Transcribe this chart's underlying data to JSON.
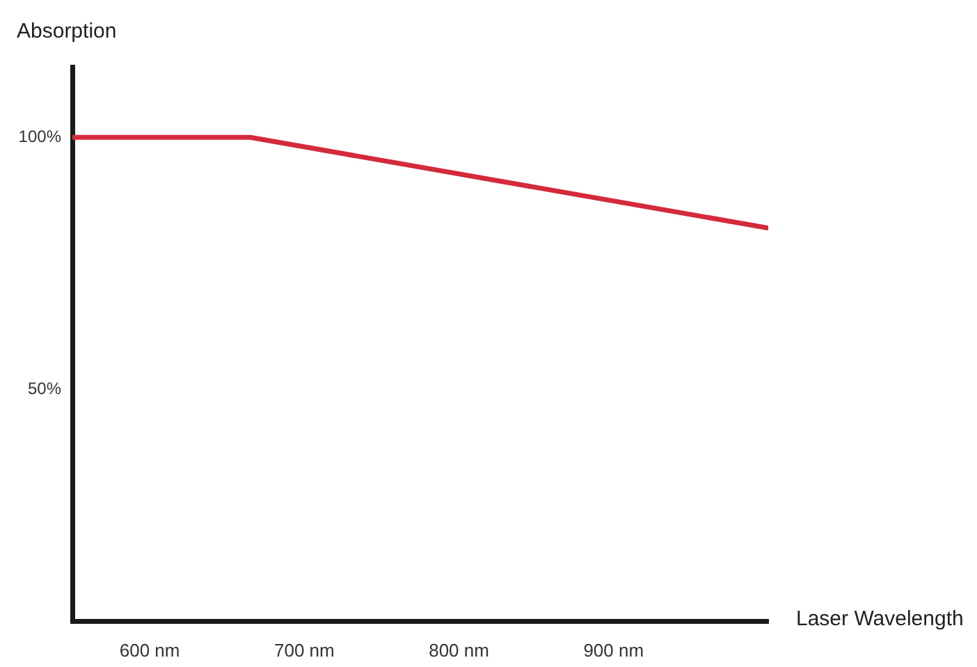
{
  "chart_data": {
    "type": "line",
    "xlabel": "Laser Wavelength",
    "ylabel": "Absorption",
    "x": [
      550,
      665,
      1000
    ],
    "series": [
      {
        "color": "#d42a3c",
        "values": [
          100,
          100,
          82
        ]
      }
    ],
    "xlim": [
      550,
      1000
    ],
    "ylim": [
      4,
      114
    ],
    "xticks": [
      {
        "value": 600,
        "label": "600 nm"
      },
      {
        "value": 700,
        "label": "700 nm"
      },
      {
        "value": 800,
        "label": "800 nm"
      },
      {
        "value": 900,
        "label": "900 nm"
      }
    ],
    "yticks": [
      {
        "value": 50,
        "label": "50%"
      },
      {
        "value": 100,
        "label": "100%"
      }
    ],
    "grid": false,
    "legend": false,
    "marker": "none",
    "line_style": "solid"
  }
}
